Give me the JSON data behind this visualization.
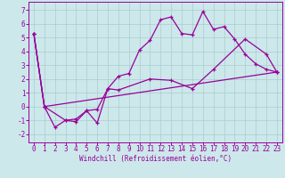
{
  "bg_color": "#cce8eb",
  "line_color": "#990099",
  "grid_color": "#aacccc",
  "xlabel": "Windchill (Refroidissement éolien,°C)",
  "ylabel_ticks": [
    -2,
    -1,
    0,
    1,
    2,
    3,
    4,
    5,
    6,
    7
  ],
  "xtick_labels": [
    "0",
    "1",
    "2",
    "3",
    "4",
    "5",
    "6",
    "7",
    "8",
    "9",
    "10",
    "11",
    "12",
    "13",
    "14",
    "15",
    "16",
    "17",
    "18",
    "19",
    "20",
    "21",
    "22",
    "23"
  ],
  "xlim": [
    -0.5,
    23.5
  ],
  "ylim": [
    -2.6,
    7.6
  ],
  "line1_x": [
    0,
    1,
    2,
    3,
    4,
    5,
    6,
    7,
    8,
    9,
    10,
    11,
    12,
    13,
    14,
    15,
    16,
    17,
    18,
    19,
    20,
    21,
    22,
    23
  ],
  "line1_y": [
    5.3,
    0.0,
    -1.5,
    -1.0,
    -0.9,
    -0.3,
    -0.2,
    1.3,
    2.2,
    2.4,
    4.1,
    4.8,
    6.3,
    6.5,
    5.3,
    5.2,
    6.9,
    5.6,
    5.8,
    4.9,
    3.8,
    3.1,
    2.7,
    2.5
  ],
  "line2_x": [
    0,
    1,
    3,
    4,
    5,
    6,
    7,
    8,
    11,
    13,
    15,
    17,
    20,
    22,
    23
  ],
  "line2_y": [
    5.3,
    0.0,
    -1.0,
    -1.1,
    -0.3,
    -1.2,
    1.3,
    1.2,
    2.0,
    1.9,
    1.3,
    2.7,
    4.9,
    3.8,
    2.5
  ],
  "line3_x": [
    0,
    1,
    23
  ],
  "line3_y": [
    5.3,
    0.0,
    2.5
  ],
  "xlabel_fontsize": 5.5,
  "tick_fontsize": 5.5
}
